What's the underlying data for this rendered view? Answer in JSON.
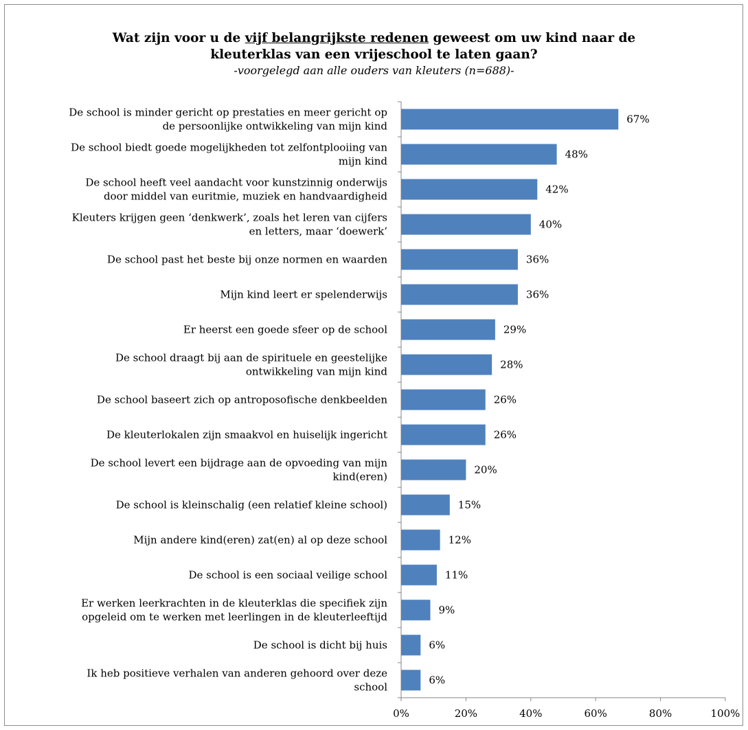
{
  "title": {
    "line1_before": "Wat zijn voor u de ",
    "line1_underlined": "vijf belangrijkste redenen",
    "line1_after": " geweest om uw kind naar de",
    "line2": "kleuterklas van een vrijeschool te laten gaan?",
    "subtitle": "-voorgelegd aan alle ouders van kleuters (n=688)-"
  },
  "chart_data": {
    "type": "bar",
    "orientation": "horizontal",
    "categories": [
      [
        "De school is minder gericht op prestaties en meer gericht op",
        "de persoonlijke ontwikkeling van mijn kind"
      ],
      [
        "De school biedt goede mogelijkheden tot zelfontplooiing van",
        "mijn kind"
      ],
      [
        "De school heeft veel aandacht voor kunstzinnig onderwijs",
        "door middel van euritmie, muziek en handvaardigheid"
      ],
      [
        "Kleuters krijgen geen ‘denkwerk’, zoals het leren van cijfers",
        "en letters, maar ‘doewerk’"
      ],
      [
        "De school past het beste bij onze normen en waarden"
      ],
      [
        "Mijn kind leert er spelenderwijs"
      ],
      [
        "Er heerst een goede sfeer op de school"
      ],
      [
        "De school draagt bij aan de spirituele en geestelijke",
        "ontwikkeling van mijn kind"
      ],
      [
        "De school baseert zich op antroposofische denkbeelden"
      ],
      [
        "De kleuterlokalen zijn smaakvol en huiselijk ingericht"
      ],
      [
        "De school levert een bijdrage aan de opvoeding van mijn",
        "kind(eren)"
      ],
      [
        "De school is kleinschalig (een relatief kleine school)"
      ],
      [
        "Mijn andere kind(eren) zat(en) al op deze school"
      ],
      [
        "De school is een sociaal veilige school"
      ],
      [
        "Er werken leerkrachten in de kleuterklas die specifiek zijn",
        "opgeleid om te werken met leerlingen in de kleuterleeftijd"
      ],
      [
        "De school is dicht bij huis"
      ],
      [
        "Ik heb positieve verhalen van anderen gehoord over deze",
        "school"
      ]
    ],
    "values": [
      67,
      48,
      42,
      40,
      36,
      36,
      29,
      28,
      26,
      26,
      20,
      15,
      12,
      11,
      9,
      6,
      6
    ],
    "value_labels": [
      "67%",
      "48%",
      "42%",
      "40%",
      "36%",
      "36%",
      "29%",
      "28%",
      "26%",
      "26%",
      "20%",
      "15%",
      "12%",
      "11%",
      "9%",
      "6%",
      "6%"
    ],
    "xticks": [
      "0%",
      "20%",
      "40%",
      "60%",
      "80%",
      "100%"
    ],
    "xlim": [
      0,
      100
    ],
    "bar_color": "#4F81BD",
    "grid": false,
    "legend": "none"
  }
}
